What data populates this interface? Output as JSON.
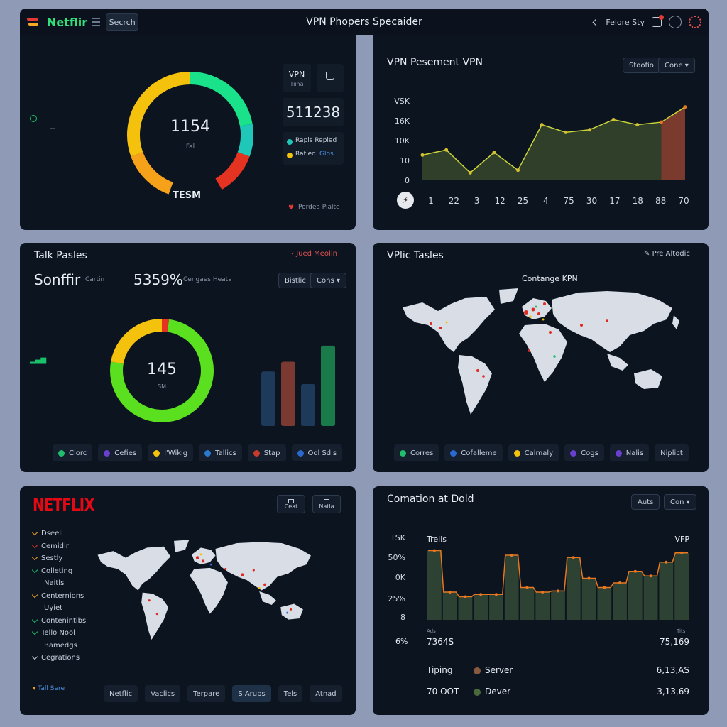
{
  "header": {
    "brand": "Netflir",
    "search_label": "Secrch",
    "title": "VPN Phopers Specaider",
    "right_text": "Felore Sty"
  },
  "gauge_panel": {
    "gauge_value": "1154",
    "gauge_sub": "Fal",
    "gauge_caption": "TESM",
    "vpn_label": "VPN",
    "vpn_sub": "Tiina",
    "big_number": "511238",
    "legend_1": "Rapis  Repied",
    "legend_2": "Ratied",
    "legend_2_link": "Glos",
    "footer": "Pordea Pialte",
    "colors": {
      "green": "#19e28a",
      "teal": "#1fc7b8",
      "yellow": "#f4c20d",
      "orange": "#f5a11a",
      "red": "#e53322"
    }
  },
  "line_panel": {
    "title": "VPN Pesement VPN",
    "btn_1": "Stoofio",
    "btn_2": "Cone",
    "chart_data": {
      "type": "area",
      "y_tick_labels": [
        "VSK",
        "16K",
        "10K",
        "10",
        "0"
      ],
      "x_tick_labels": [
        "1",
        "22",
        "3",
        "12",
        "25",
        "4",
        "75",
        "30",
        "17",
        "18",
        "88",
        "70"
      ],
      "values": [
        10,
        12,
        3,
        11,
        4,
        22,
        19,
        20,
        24,
        22,
        23,
        29
      ],
      "color": "#c9d43a",
      "highlight_color": "#7a3a2e"
    }
  },
  "donut_panel": {
    "title": "Talk Pasles",
    "link": "Jued Meolin",
    "headline": "Sonffir",
    "headline_sub": "Cartin",
    "percent": "5359%",
    "percent_sub": "Cengaes Heata",
    "btn_1": "Bistlic",
    "btn_2": "Cons",
    "donut_value": "145",
    "donut_sub": "SM",
    "chart_data": {
      "type": "bar",
      "values": [
        78,
        92,
        60,
        115
      ],
      "colors": [
        "#1e3a5a",
        "#7a3a32",
        "#1e3a5a",
        "#1a7a4a"
      ]
    },
    "legend": [
      {
        "label": "Clorc",
        "color": "#1fbf6e"
      },
      {
        "label": "Cefies",
        "color": "#6a3fd0"
      },
      {
        "label": "I'Wikig",
        "color": "#f4c20d"
      },
      {
        "label": "Tallics",
        "color": "#2a7ad0"
      },
      {
        "label": "Stap",
        "color": "#c83a2a"
      },
      {
        "label": "Ool Sdis",
        "color": "#2a6ad0"
      }
    ]
  },
  "map_panel": {
    "title": "VPlic Tasles",
    "link": "Pre Altodic",
    "map_title": "Contange KPN",
    "legend": [
      {
        "label": "Corres",
        "color": "#1fbf6e"
      },
      {
        "label": "Cofalleme",
        "color": "#2a6ad0"
      },
      {
        "label": "Calmaly",
        "color": "#f4c20d"
      },
      {
        "label": "Cogs",
        "color": "#6a3fd0"
      },
      {
        "label": "Nalis",
        "color": "#6a3fd0"
      },
      {
        "label": "Niplict",
        "color": ""
      }
    ]
  },
  "netflix_panel": {
    "logo": "NETFLIX",
    "btn_1": "Ceat",
    "btn_2": "Natla",
    "menu": [
      {
        "label": "Dseeli",
        "color": "#f5a11a",
        "sub": false
      },
      {
        "label": "Cemidlr",
        "color": "#e53322",
        "sub": false
      },
      {
        "label": "Sestly",
        "color": "#f5a11a",
        "sub": false
      },
      {
        "label": "Colleting",
        "color": "#19c26a",
        "sub": false
      },
      {
        "label": "Naitls",
        "color": "",
        "sub": true
      },
      {
        "label": "Centernions",
        "color": "#f5a11a",
        "sub": false
      },
      {
        "label": "Uyiet",
        "color": "",
        "sub": true
      },
      {
        "label": "Contenintibs",
        "color": "#19c26a",
        "sub": false
      },
      {
        "label": "Tello Nool",
        "color": "#19c26a",
        "sub": false
      },
      {
        "label": "Bamedgs",
        "color": "",
        "sub": true
      },
      {
        "label": "Cegrations",
        "color": "#c5cedb",
        "sub": false
      }
    ],
    "footer_link": "Tall Sere",
    "tabs": [
      "Netflic",
      "Vaclics",
      "Terpare",
      "S Arups",
      "Tels",
      "Atnad"
    ]
  },
  "bar_panel": {
    "title": "Comation at Dold",
    "btn_1": "Auts",
    "btn_2": "Con",
    "chart_title": "Trelis",
    "chart_right": "VFP",
    "small_left": "Ads",
    "small_right": "Tits",
    "chart_data": {
      "type": "bar",
      "y_tick_labels": [
        "TSK",
        "50%",
        "0K",
        "25%",
        "8"
      ],
      "values": [
        60,
        24,
        20,
        22,
        22,
        56,
        28,
        24,
        25,
        54,
        36,
        28,
        32,
        42,
        38,
        50,
        58
      ],
      "bar_color": "#2e4233",
      "line_color": "#e87820"
    },
    "summary_left": "7364S",
    "summary_left_label": "6%",
    "summary_right": "75,169",
    "row_1_label": "Tiping",
    "row_1_key": "Server",
    "row_1_key_color": "#8a5a40",
    "row_1_value": "6,13,AS",
    "row_2_label": "70 OOT",
    "row_2_key": "Dever",
    "row_2_key_color": "#4a6a3a",
    "row_2_value": "3,13,69"
  }
}
